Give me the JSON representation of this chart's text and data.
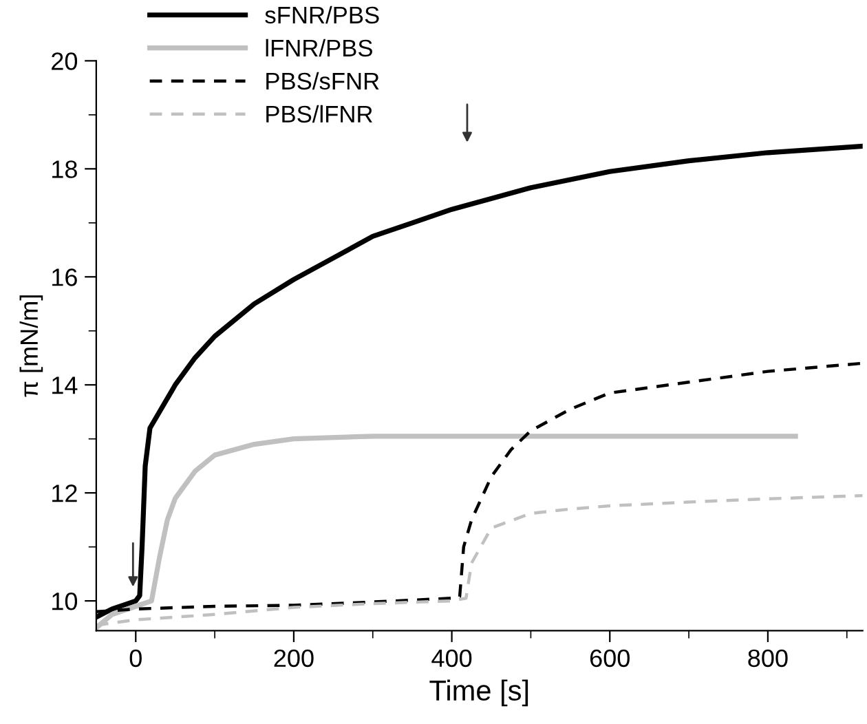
{
  "chart_data": {
    "type": "line",
    "xlabel": "Time [s]",
    "ylabel": "π [mN/m]",
    "xlim": [
      -50,
      920
    ],
    "ylim": [
      9.45,
      20
    ],
    "xticks": [
      0,
      200,
      400,
      600,
      800
    ],
    "yticks": [
      10,
      12,
      14,
      16,
      18,
      20
    ],
    "grid": false,
    "legend": "top left",
    "marker": "none",
    "series": [
      {
        "name": "sFNR/PBS",
        "color": "#000000",
        "line_style": "solid",
        "x": [
          -50,
          -30,
          -10,
          0,
          5,
          8,
          12,
          18,
          30,
          50,
          75,
          100,
          150,
          200,
          250,
          300,
          350,
          400,
          450,
          500,
          550,
          600,
          700,
          800,
          920
        ],
        "values": [
          9.7,
          9.85,
          9.95,
          10.0,
          10.1,
          11.0,
          12.5,
          13.2,
          13.5,
          14.0,
          14.5,
          14.9,
          15.5,
          15.95,
          16.35,
          16.75,
          17.0,
          17.25,
          17.45,
          17.65,
          17.8,
          17.95,
          18.15,
          18.3,
          18.42
        ]
      },
      {
        "name": "lFNR/PBS",
        "color": "#c0c0c0",
        "line_style": "solid",
        "x": [
          -50,
          -30,
          0,
          20,
          30,
          40,
          50,
          75,
          100,
          150,
          200,
          300,
          400,
          600,
          835
        ],
        "values": [
          9.5,
          9.75,
          9.9,
          10.0,
          10.8,
          11.5,
          11.9,
          12.4,
          12.7,
          12.9,
          13.0,
          13.05,
          13.05,
          13.05,
          13.05
        ]
      },
      {
        "name": "PBS/sFNR",
        "color": "#000000",
        "line_style": "dashed",
        "x": [
          -50,
          0,
          100,
          200,
          300,
          400,
          410,
          415,
          425,
          450,
          475,
          500,
          550,
          600,
          700,
          800,
          920
        ],
        "values": [
          9.8,
          9.85,
          9.9,
          9.92,
          9.98,
          10.05,
          10.08,
          11.0,
          11.5,
          12.3,
          12.8,
          13.15,
          13.55,
          13.85,
          14.05,
          14.25,
          14.4
        ]
      },
      {
        "name": "PBS/lFNR",
        "color": "#c0c0c0",
        "line_style": "dashed",
        "x": [
          -50,
          0,
          100,
          200,
          300,
          400,
          418,
          425,
          450,
          500,
          550,
          600,
          700,
          800,
          920
        ],
        "values": [
          9.55,
          9.65,
          9.75,
          9.88,
          9.95,
          10.0,
          10.05,
          10.7,
          11.35,
          11.62,
          11.7,
          11.76,
          11.83,
          11.89,
          11.95
        ]
      }
    ]
  }
}
